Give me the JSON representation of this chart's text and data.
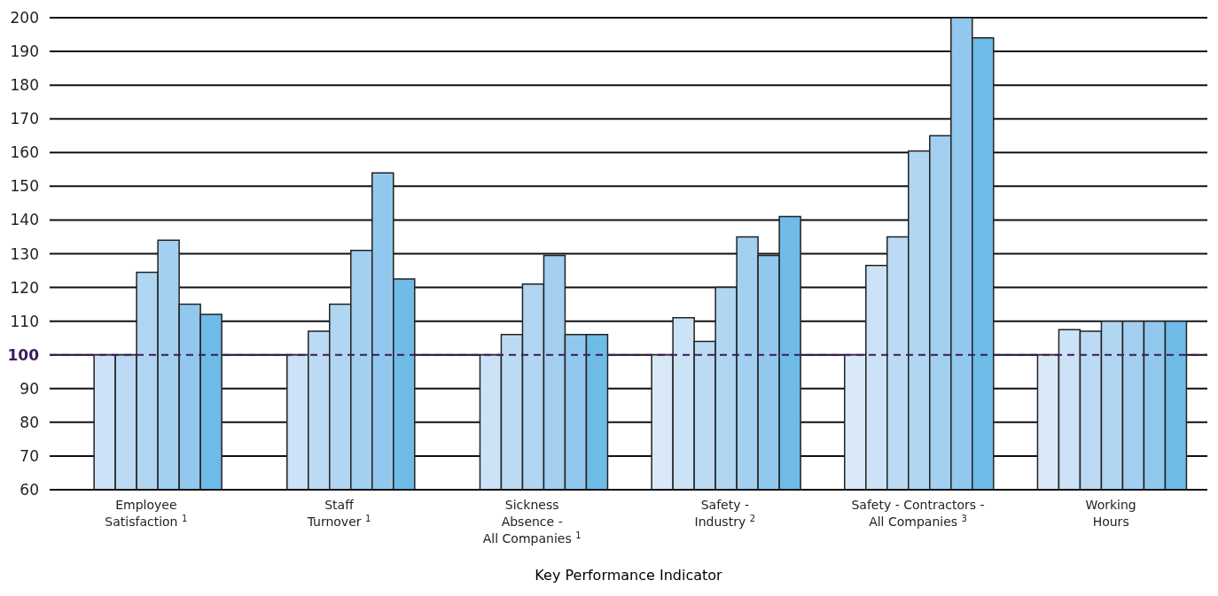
{
  "chart_data": {
    "type": "bar",
    "xlabel": "Key Performance Indicator",
    "categories": [
      "Employee\nSatisfaction $^{1}$",
      "Staff\nTurnover $^{1}$",
      "Sickness\nAbsence -\nAll Companies $^{1}$",
      "Safety -\nIndustry $^{2}$",
      "Safety - Contractors -\nAll Companies $^{3}$",
      "Working\nHours"
    ],
    "series": [
      {
        "color": "#d9e9f7",
        "values": [
          null,
          null,
          null,
          100,
          100,
          100
        ]
      },
      {
        "color": "#cce2f6",
        "values": [
          100,
          100,
          100,
          111,
          126.5,
          107.5
        ]
      },
      {
        "color": "#bcdaf3",
        "values": [
          100,
          107,
          106,
          104,
          135,
          107
        ]
      },
      {
        "color": "#b0d6f2",
        "values": [
          124.5,
          115,
          121,
          120,
          160.5,
          110
        ]
      },
      {
        "color": "#a3cff0",
        "values": [
          134,
          131,
          129.5,
          135,
          165,
          110
        ]
      },
      {
        "color": "#92c8ed",
        "values": [
          115,
          154,
          106,
          129.5,
          200,
          110
        ]
      },
      {
        "color": "#6fbbe8",
        "values": [
          112,
          122.5,
          106,
          141,
          194,
          110
        ]
      }
    ],
    "ylim": [
      60,
      200
    ],
    "yticks": [
      60,
      70,
      80,
      90,
      100,
      110,
      120,
      130,
      140,
      150,
      160,
      170,
      180,
      190,
      200
    ],
    "grid": "y",
    "legend": false,
    "ref_lines": [
      {
        "axis": "y",
        "value": 100,
        "label": null,
        "color": "#3d1a5c",
        "line_style": "dashed"
      }
    ]
  }
}
